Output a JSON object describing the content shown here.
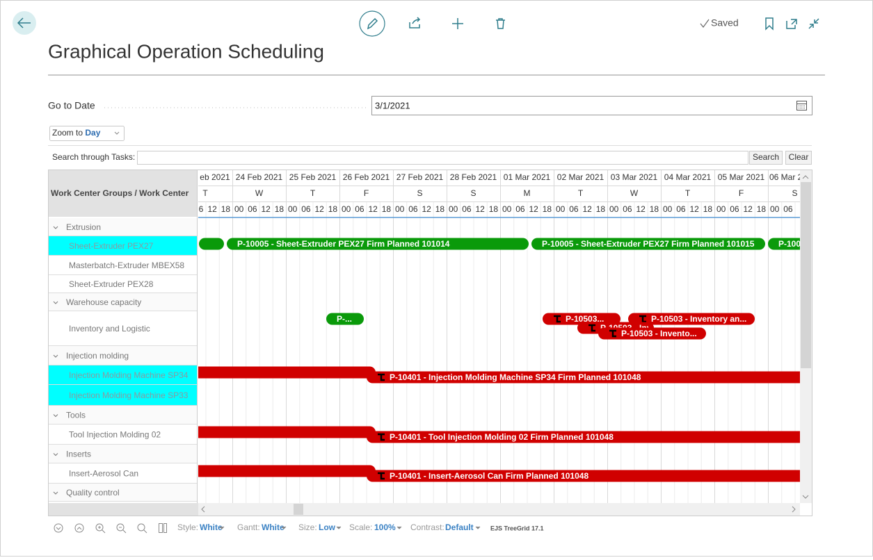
{
  "header": {
    "saved": "Saved",
    "title": "Graphical Operation Scheduling"
  },
  "form": {
    "goto_label": "Go to Date",
    "goto_value": "3/1/2021",
    "zoom_label": "Zoom to",
    "zoom_value": "Day"
  },
  "search": {
    "label": "Search through Tasks:",
    "search_button": "Search",
    "clear_button": "Clear"
  },
  "grid": {
    "column_header": "Work Center Groups / Work Center",
    "dates": [
      "eb 2021",
      "24 Feb 2021",
      "25 Feb 2021",
      "26 Feb 2021",
      "27 Feb 2021",
      "28 Feb 2021",
      "01 Mar 2021",
      "02 Mar 2021",
      "03 Mar 2021",
      "04 Mar 2021",
      "05 Mar 2021",
      "06 Mar 2"
    ],
    "weekdays": [
      "T",
      "W",
      "T",
      "F",
      "S",
      "S",
      "M",
      "T",
      "W",
      "T",
      "F",
      "S"
    ],
    "hours": [
      "6",
      "12",
      "18",
      "00",
      "06",
      "12",
      "18",
      "00",
      "06",
      "12",
      "18",
      "00",
      "06",
      "12",
      "18",
      "00",
      "06",
      "12",
      "18",
      "00",
      "06",
      "12",
      "18",
      "00",
      "06",
      "12",
      "18",
      "00",
      "06",
      "12",
      "18",
      "00",
      "06",
      "12",
      "18",
      "00",
      "06",
      "12",
      "18",
      "00",
      "06",
      "12",
      "18",
      "00",
      "06"
    ],
    "rows": [
      {
        "label": "Extrusion",
        "group": true
      },
      {
        "label": "Sheet-Extruder PEX27",
        "highlighted": true
      },
      {
        "label": "Masterbatch-Extruder MBEX58"
      },
      {
        "label": "Sheet-Extruder PEX28"
      },
      {
        "label": "Warehouse capacity",
        "group": true
      },
      {
        "label": "Inventory and Logistic"
      },
      {
        "label": "Injection molding",
        "group": true
      },
      {
        "label": "Injection Molding Machine SP34",
        "highlighted": true
      },
      {
        "label": "Injection Molding Machine SP33",
        "highlighted": true
      },
      {
        "label": "Tools",
        "group": true
      },
      {
        "label": "Tool Injection Molding 02"
      },
      {
        "label": "Inserts",
        "group": true
      },
      {
        "label": "Insert-Aerosol Can"
      },
      {
        "label": "Quality control",
        "group": true
      }
    ],
    "bars": [
      "P-10005 - Sheet-Extruder PEX27 Firm Planned 101014",
      "P-10005 - Sheet-Extruder PEX27 Firm Planned 101015",
      "P-100",
      "P-...",
      "P-10503...",
      "P-10503 - Inventory an...",
      "P-10503 - Inven...",
      "P-10503 - Invento...",
      "P-10401 - Injection Molding Machine SP34 Firm Planned 101048",
      "P-10401 - Tool Injection Molding 02 Firm Planned 101048",
      "P-10401 - Insert-Aerosol Can Firm Planned 101048"
    ]
  },
  "footer": {
    "style_label": "Style:",
    "style_value": "White",
    "gantt_label": "Gantt:",
    "gantt_value": "White",
    "size_label": "Size:",
    "size_value": "Low",
    "scale_label": "Scale:",
    "scale_value": "100%",
    "contrast_label": "Contrast:",
    "contrast_value": "Default",
    "version": "EJS TreeGrid 17.1"
  }
}
